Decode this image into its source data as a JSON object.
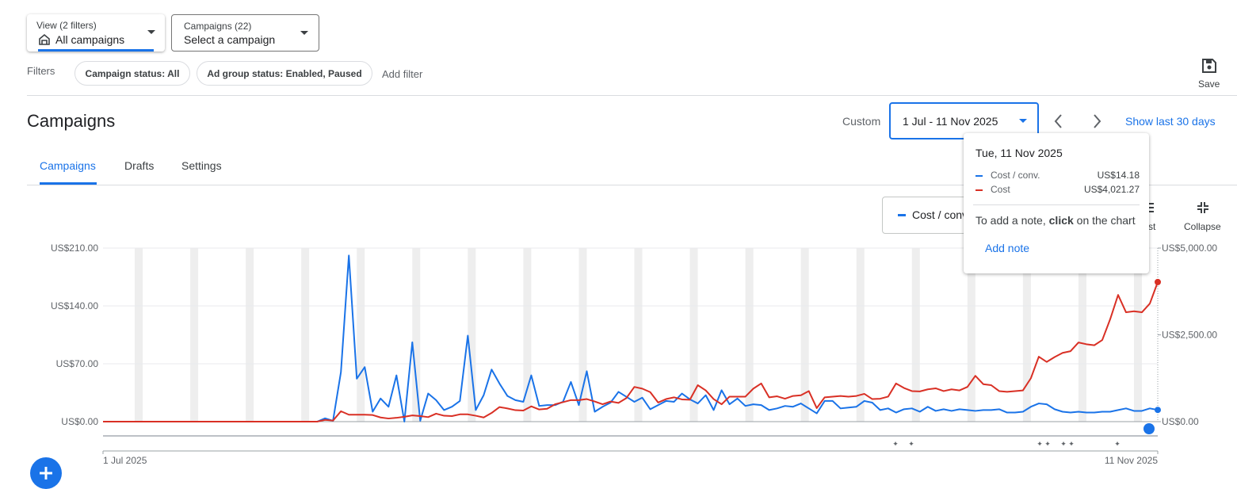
{
  "ui": {
    "view_filter": {
      "label": "View (2 filters)",
      "value": "All campaigns"
    },
    "campaign_filter": {
      "label": "Campaigns (22)",
      "value": "Select a campaign"
    },
    "filters_label": "Filters",
    "filter_chips": [
      "Campaign status: All",
      "Ad group status: Enabled, Paused"
    ],
    "add_filter": "Add filter",
    "save": "Save",
    "page_title": "Campaigns",
    "date_mode": "Custom",
    "date_range": "1 Jul - 11 Nov 2025",
    "show_last": "Show last 30 days",
    "tabs": [
      "Campaigns",
      "Drafts",
      "Settings"
    ],
    "toolbar": [
      "Adjust",
      "Collapse"
    ],
    "tooltip": {
      "date": "Tue, 11 Nov 2025",
      "values": [
        "US$14.18",
        "US$4,021.27"
      ],
      "note": [
        "To add a note, ",
        "click",
        " on the chart"
      ],
      "add_note": "Add note"
    }
  },
  "chart_data": {
    "type": "line",
    "categories": [
      "1 Jul 2025",
      null,
      null,
      null,
      null,
      null,
      null,
      null,
      null,
      null,
      null,
      null,
      null,
      null,
      null,
      null,
      null,
      null,
      null,
      null,
      null,
      null,
      null,
      null,
      null,
      null,
      null,
      null,
      null,
      null,
      null,
      null,
      null,
      null,
      null,
      null,
      null,
      null,
      null,
      null,
      null,
      null,
      null,
      null,
      null,
      null,
      null,
      null,
      null,
      null,
      null,
      null,
      null,
      null,
      null,
      null,
      null,
      null,
      null,
      null,
      null,
      null,
      null,
      null,
      null,
      null,
      null,
      null,
      null,
      null,
      null,
      null,
      null,
      null,
      null,
      null,
      null,
      null,
      null,
      null,
      null,
      null,
      null,
      null,
      null,
      null,
      null,
      null,
      null,
      null,
      null,
      null,
      null,
      null,
      null,
      null,
      null,
      null,
      null,
      null,
      null,
      null,
      null,
      null,
      null,
      null,
      null,
      null,
      null,
      null,
      null,
      null,
      null,
      null,
      null,
      null,
      null,
      null,
      null,
      null,
      null,
      null,
      null,
      null,
      null,
      null,
      null,
      null,
      null,
      null,
      null,
      null,
      null,
      "11 Nov 2025"
    ],
    "series": [
      {
        "name": "Cost / conv.",
        "color": "#1a73e8",
        "values": [
          0,
          0,
          0,
          0,
          0,
          0,
          0,
          0,
          0,
          0,
          0,
          0,
          0,
          0,
          0,
          0,
          0,
          0,
          0,
          0,
          0,
          0,
          0,
          0,
          0,
          0,
          0,
          0,
          4,
          1,
          60,
          201,
          52,
          66,
          12,
          28,
          18,
          56,
          0,
          96,
          1,
          34,
          26,
          14,
          18,
          25,
          104,
          14,
          32,
          63,
          46,
          31,
          26,
          24,
          56,
          19,
          20,
          20,
          24,
          48,
          20,
          61,
          12,
          18,
          23,
          36,
          30,
          24,
          29,
          15,
          20,
          25,
          24,
          34,
          27,
          22,
          32,
          14,
          38,
          21,
          28,
          19,
          21,
          20,
          14,
          16,
          19,
          18,
          22,
          16,
          10,
          25,
          25,
          16,
          17,
          18,
          25,
          23,
          14,
          16,
          11,
          15,
          16,
          12,
          18,
          13,
          15,
          13,
          15,
          14,
          13,
          14,
          14,
          15,
          11,
          11,
          12,
          18,
          22,
          21,
          15,
          12,
          11,
          12,
          11,
          11,
          12,
          12,
          14,
          16,
          13,
          13,
          16,
          14.18
        ]
      },
      {
        "name": "Cost",
        "color": "#d93025",
        "axis": "y2",
        "values": [
          0,
          0,
          0,
          0,
          0,
          0,
          0,
          0,
          0,
          0,
          0,
          0,
          0,
          0,
          0,
          0,
          0,
          0,
          0,
          0,
          0,
          0,
          0,
          0,
          0,
          0,
          0,
          0,
          50,
          30,
          300,
          200,
          200,
          200,
          190,
          120,
          90,
          110,
          140,
          180,
          160,
          130,
          230,
          170,
          160,
          210,
          210,
          170,
          120,
          250,
          420,
          380,
          330,
          320,
          440,
          350,
          370,
          500,
          560,
          620,
          620,
          650,
          580,
          500,
          580,
          540,
          680,
          1000,
          950,
          850,
          550,
          650,
          700,
          640,
          630,
          1050,
          900,
          650,
          500,
          720,
          720,
          720,
          950,
          1100,
          700,
          730,
          660,
          740,
          760,
          880,
          390,
          700,
          720,
          740,
          720,
          740,
          800,
          650,
          660,
          720,
          1100,
          970,
          880,
          870,
          930,
          960,
          880,
          930,
          900,
          1000,
          1320,
          1080,
          1050,
          880,
          860,
          880,
          900,
          1250,
          1870,
          1720,
          1860,
          1980,
          2030,
          2280,
          2230,
          2200,
          2350,
          2950,
          3650,
          3150,
          3180,
          3150,
          3400,
          4021.27
        ]
      }
    ],
    "ylim": [
      0,
      210
    ],
    "yticks": [
      {
        "value": 0,
        "label": "US$0.00"
      },
      {
        "value": 70,
        "label": "US$70.00"
      },
      {
        "value": 140,
        "label": "US$140.00"
      },
      {
        "value": 210,
        "label": "US$210.00"
      }
    ],
    "y2lim": [
      0,
      5000
    ],
    "y2ticks": [
      {
        "value": 0,
        "label": "US$0.00"
      },
      {
        "value": 2500,
        "label": "US$2,500.00"
      },
      {
        "value": 5000,
        "label": "US$5,000.00"
      }
    ],
    "grid": true
  }
}
